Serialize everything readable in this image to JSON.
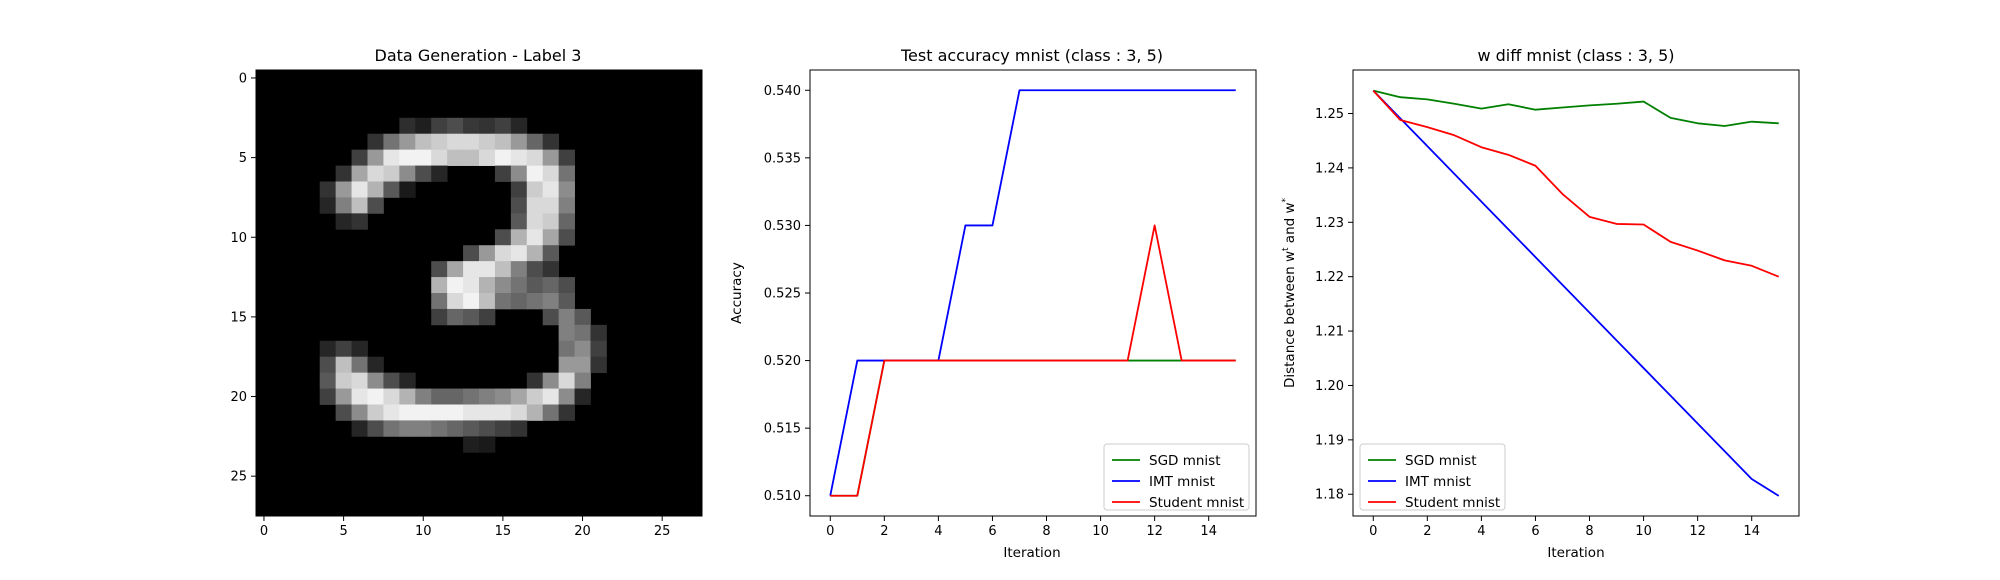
{
  "chart_data": [
    {
      "type": "heatmap",
      "title": "Data Generation - Label 3",
      "xticks": [
        0,
        5,
        10,
        15,
        20,
        25
      ],
      "yticks": [
        0,
        5,
        10,
        15,
        20,
        25
      ],
      "xlim": [
        -0.5,
        27.5
      ],
      "ylim": [
        27.5,
        -0.5
      ],
      "colormap": "gray",
      "size": [
        28,
        28
      ],
      "pixels": [
        {
          "r": 3,
          "c": 9,
          "v": 0.18
        },
        {
          "r": 3,
          "c": 10,
          "v": 0.12
        },
        {
          "r": 3,
          "c": 11,
          "v": 0.25
        },
        {
          "r": 3,
          "c": 12,
          "v": 0.3
        },
        {
          "r": 3,
          "c": 13,
          "v": 0.22
        },
        {
          "r": 3,
          "c": 14,
          "v": 0.2
        },
        {
          "r": 3,
          "c": 15,
          "v": 0.25
        },
        {
          "r": 3,
          "c": 16,
          "v": 0.15
        },
        {
          "r": 4,
          "c": 7,
          "v": 0.2
        },
        {
          "r": 4,
          "c": 8,
          "v": 0.45
        },
        {
          "r": 4,
          "c": 9,
          "v": 0.6
        },
        {
          "r": 4,
          "c": 10,
          "v": 0.75
        },
        {
          "r": 4,
          "c": 11,
          "v": 0.8
        },
        {
          "r": 4,
          "c": 12,
          "v": 0.85
        },
        {
          "r": 4,
          "c": 13,
          "v": 0.85
        },
        {
          "r": 4,
          "c": 14,
          "v": 0.8
        },
        {
          "r": 4,
          "c": 15,
          "v": 0.75
        },
        {
          "r": 4,
          "c": 16,
          "v": 0.6
        },
        {
          "r": 4,
          "c": 17,
          "v": 0.4
        },
        {
          "r": 4,
          "c": 18,
          "v": 0.2
        },
        {
          "r": 5,
          "c": 6,
          "v": 0.25
        },
        {
          "r": 5,
          "c": 7,
          "v": 0.6
        },
        {
          "r": 5,
          "c": 8,
          "v": 0.9
        },
        {
          "r": 5,
          "c": 9,
          "v": 0.95
        },
        {
          "r": 5,
          "c": 10,
          "v": 0.95
        },
        {
          "r": 5,
          "c": 11,
          "v": 0.85
        },
        {
          "r": 5,
          "c": 12,
          "v": 0.75
        },
        {
          "r": 5,
          "c": 13,
          "v": 0.75
        },
        {
          "r": 5,
          "c": 14,
          "v": 0.85
        },
        {
          "r": 5,
          "c": 15,
          "v": 0.95
        },
        {
          "r": 5,
          "c": 16,
          "v": 0.9
        },
        {
          "r": 5,
          "c": 17,
          "v": 0.85
        },
        {
          "r": 5,
          "c": 18,
          "v": 0.6
        },
        {
          "r": 5,
          "c": 19,
          "v": 0.25
        },
        {
          "r": 6,
          "c": 5,
          "v": 0.2
        },
        {
          "r": 6,
          "c": 6,
          "v": 0.65
        },
        {
          "r": 6,
          "c": 7,
          "v": 0.85
        },
        {
          "r": 6,
          "c": 8,
          "v": 0.8
        },
        {
          "r": 6,
          "c": 9,
          "v": 0.55
        },
        {
          "r": 6,
          "c": 10,
          "v": 0.3
        },
        {
          "r": 6,
          "c": 11,
          "v": 0.15
        },
        {
          "r": 6,
          "c": 15,
          "v": 0.25
        },
        {
          "r": 6,
          "c": 16,
          "v": 0.55
        },
        {
          "r": 6,
          "c": 17,
          "v": 0.95
        },
        {
          "r": 6,
          "c": 18,
          "v": 0.85
        },
        {
          "r": 6,
          "c": 19,
          "v": 0.45
        },
        {
          "r": 7,
          "c": 4,
          "v": 0.2
        },
        {
          "r": 7,
          "c": 5,
          "v": 0.6
        },
        {
          "r": 7,
          "c": 6,
          "v": 0.9
        },
        {
          "r": 7,
          "c": 7,
          "v": 0.7
        },
        {
          "r": 7,
          "c": 8,
          "v": 0.35
        },
        {
          "r": 7,
          "c": 9,
          "v": 0.1
        },
        {
          "r": 7,
          "c": 16,
          "v": 0.25
        },
        {
          "r": 7,
          "c": 17,
          "v": 0.8
        },
        {
          "r": 7,
          "c": 18,
          "v": 0.9
        },
        {
          "r": 7,
          "c": 19,
          "v": 0.55
        },
        {
          "r": 8,
          "c": 4,
          "v": 0.15
        },
        {
          "r": 8,
          "c": 5,
          "v": 0.5
        },
        {
          "r": 8,
          "c": 6,
          "v": 0.75
        },
        {
          "r": 8,
          "c": 7,
          "v": 0.3
        },
        {
          "r": 8,
          "c": 16,
          "v": 0.3
        },
        {
          "r": 8,
          "c": 17,
          "v": 0.85
        },
        {
          "r": 8,
          "c": 18,
          "v": 0.85
        },
        {
          "r": 8,
          "c": 19,
          "v": 0.5
        },
        {
          "r": 9,
          "c": 5,
          "v": 0.15
        },
        {
          "r": 9,
          "c": 6,
          "v": 0.2
        },
        {
          "r": 9,
          "c": 16,
          "v": 0.35
        },
        {
          "r": 9,
          "c": 17,
          "v": 0.85
        },
        {
          "r": 9,
          "c": 18,
          "v": 0.8
        },
        {
          "r": 9,
          "c": 19,
          "v": 0.4
        },
        {
          "r": 10,
          "c": 15,
          "v": 0.3
        },
        {
          "r": 10,
          "c": 16,
          "v": 0.7
        },
        {
          "r": 10,
          "c": 17,
          "v": 0.9
        },
        {
          "r": 10,
          "c": 18,
          "v": 0.65
        },
        {
          "r": 10,
          "c": 19,
          "v": 0.3
        },
        {
          "r": 11,
          "c": 13,
          "v": 0.3
        },
        {
          "r": 11,
          "c": 14,
          "v": 0.6
        },
        {
          "r": 11,
          "c": 15,
          "v": 0.85
        },
        {
          "r": 11,
          "c": 16,
          "v": 0.9
        },
        {
          "r": 11,
          "c": 17,
          "v": 0.7
        },
        {
          "r": 11,
          "c": 18,
          "v": 0.35
        },
        {
          "r": 12,
          "c": 11,
          "v": 0.3
        },
        {
          "r": 12,
          "c": 12,
          "v": 0.65
        },
        {
          "r": 12,
          "c": 13,
          "v": 0.9
        },
        {
          "r": 12,
          "c": 14,
          "v": 0.9
        },
        {
          "r": 12,
          "c": 15,
          "v": 0.75
        },
        {
          "r": 12,
          "c": 16,
          "v": 0.5
        },
        {
          "r": 12,
          "c": 17,
          "v": 0.3
        },
        {
          "r": 12,
          "c": 18,
          "v": 0.2
        },
        {
          "r": 13,
          "c": 11,
          "v": 0.7
        },
        {
          "r": 13,
          "c": 12,
          "v": 0.95
        },
        {
          "r": 13,
          "c": 13,
          "v": 0.9
        },
        {
          "r": 13,
          "c": 14,
          "v": 0.7
        },
        {
          "r": 13,
          "c": 15,
          "v": 0.55
        },
        {
          "r": 13,
          "c": 16,
          "v": 0.45
        },
        {
          "r": 13,
          "c": 17,
          "v": 0.35
        },
        {
          "r": 13,
          "c": 18,
          "v": 0.4
        },
        {
          "r": 13,
          "c": 19,
          "v": 0.3
        },
        {
          "r": 14,
          "c": 11,
          "v": 0.45
        },
        {
          "r": 14,
          "c": 12,
          "v": 0.85
        },
        {
          "r": 14,
          "c": 13,
          "v": 0.95
        },
        {
          "r": 14,
          "c": 14,
          "v": 0.75
        },
        {
          "r": 14,
          "c": 15,
          "v": 0.45
        },
        {
          "r": 14,
          "c": 16,
          "v": 0.4
        },
        {
          "r": 14,
          "c": 17,
          "v": 0.45
        },
        {
          "r": 14,
          "c": 18,
          "v": 0.5
        },
        {
          "r": 14,
          "c": 19,
          "v": 0.35
        },
        {
          "r": 15,
          "c": 11,
          "v": 0.25
        },
        {
          "r": 15,
          "c": 12,
          "v": 0.4
        },
        {
          "r": 15,
          "c": 13,
          "v": 0.35
        },
        {
          "r": 15,
          "c": 14,
          "v": 0.25
        },
        {
          "r": 15,
          "c": 18,
          "v": 0.3
        },
        {
          "r": 15,
          "c": 19,
          "v": 0.5
        },
        {
          "r": 15,
          "c": 20,
          "v": 0.35
        },
        {
          "r": 16,
          "c": 19,
          "v": 0.5
        },
        {
          "r": 16,
          "c": 20,
          "v": 0.45
        },
        {
          "r": 16,
          "c": 21,
          "v": 0.2
        },
        {
          "r": 17,
          "c": 4,
          "v": 0.15
        },
        {
          "r": 17,
          "c": 5,
          "v": 0.25
        },
        {
          "r": 17,
          "c": 6,
          "v": 0.15
        },
        {
          "r": 17,
          "c": 19,
          "v": 0.45
        },
        {
          "r": 17,
          "c": 20,
          "v": 0.55
        },
        {
          "r": 17,
          "c": 21,
          "v": 0.25
        },
        {
          "r": 18,
          "c": 4,
          "v": 0.3
        },
        {
          "r": 18,
          "c": 5,
          "v": 0.75
        },
        {
          "r": 18,
          "c": 6,
          "v": 0.45
        },
        {
          "r": 18,
          "c": 7,
          "v": 0.15
        },
        {
          "r": 18,
          "c": 19,
          "v": 0.6
        },
        {
          "r": 18,
          "c": 20,
          "v": 0.6
        },
        {
          "r": 18,
          "c": 21,
          "v": 0.2
        },
        {
          "r": 19,
          "c": 4,
          "v": 0.35
        },
        {
          "r": 19,
          "c": 5,
          "v": 0.8
        },
        {
          "r": 19,
          "c": 6,
          "v": 0.85
        },
        {
          "r": 19,
          "c": 7,
          "v": 0.55
        },
        {
          "r": 19,
          "c": 8,
          "v": 0.3
        },
        {
          "r": 19,
          "c": 9,
          "v": 0.15
        },
        {
          "r": 19,
          "c": 17,
          "v": 0.2
        },
        {
          "r": 19,
          "c": 18,
          "v": 0.55
        },
        {
          "r": 19,
          "c": 19,
          "v": 0.85
        },
        {
          "r": 19,
          "c": 20,
          "v": 0.5
        },
        {
          "r": 20,
          "c": 4,
          "v": 0.25
        },
        {
          "r": 20,
          "c": 5,
          "v": 0.6
        },
        {
          "r": 20,
          "c": 6,
          "v": 0.9
        },
        {
          "r": 20,
          "c": 7,
          "v": 0.95
        },
        {
          "r": 20,
          "c": 8,
          "v": 0.85
        },
        {
          "r": 20,
          "c": 9,
          "v": 0.7
        },
        {
          "r": 20,
          "c": 10,
          "v": 0.5
        },
        {
          "r": 20,
          "c": 11,
          "v": 0.4
        },
        {
          "r": 20,
          "c": 12,
          "v": 0.4
        },
        {
          "r": 20,
          "c": 13,
          "v": 0.45
        },
        {
          "r": 20,
          "c": 14,
          "v": 0.5
        },
        {
          "r": 20,
          "c": 15,
          "v": 0.55
        },
        {
          "r": 20,
          "c": 16,
          "v": 0.65
        },
        {
          "r": 20,
          "c": 17,
          "v": 0.8
        },
        {
          "r": 20,
          "c": 18,
          "v": 0.9
        },
        {
          "r": 20,
          "c": 19,
          "v": 0.55
        },
        {
          "r": 20,
          "c": 20,
          "v": 0.15
        },
        {
          "r": 21,
          "c": 5,
          "v": 0.3
        },
        {
          "r": 21,
          "c": 6,
          "v": 0.55
        },
        {
          "r": 21,
          "c": 7,
          "v": 0.8
        },
        {
          "r": 21,
          "c": 8,
          "v": 0.9
        },
        {
          "r": 21,
          "c": 9,
          "v": 0.95
        },
        {
          "r": 21,
          "c": 10,
          "v": 0.95
        },
        {
          "r": 21,
          "c": 11,
          "v": 0.95
        },
        {
          "r": 21,
          "c": 12,
          "v": 0.95
        },
        {
          "r": 21,
          "c": 13,
          "v": 0.9
        },
        {
          "r": 21,
          "c": 14,
          "v": 0.9
        },
        {
          "r": 21,
          "c": 15,
          "v": 0.9
        },
        {
          "r": 21,
          "c": 16,
          "v": 0.85
        },
        {
          "r": 21,
          "c": 17,
          "v": 0.7
        },
        {
          "r": 21,
          "c": 18,
          "v": 0.45
        },
        {
          "r": 21,
          "c": 19,
          "v": 0.2
        },
        {
          "r": 22,
          "c": 6,
          "v": 0.15
        },
        {
          "r": 22,
          "c": 7,
          "v": 0.3
        },
        {
          "r": 22,
          "c": 8,
          "v": 0.45
        },
        {
          "r": 22,
          "c": 9,
          "v": 0.5
        },
        {
          "r": 22,
          "c": 10,
          "v": 0.5
        },
        {
          "r": 22,
          "c": 11,
          "v": 0.45
        },
        {
          "r": 22,
          "c": 12,
          "v": 0.4
        },
        {
          "r": 22,
          "c": 13,
          "v": 0.35
        },
        {
          "r": 22,
          "c": 14,
          "v": 0.3
        },
        {
          "r": 22,
          "c": 15,
          "v": 0.25
        },
        {
          "r": 22,
          "c": 16,
          "v": 0.2
        },
        {
          "r": 23,
          "c": 13,
          "v": 0.12
        },
        {
          "r": 23,
          "c": 14,
          "v": 0.1
        }
      ]
    },
    {
      "type": "line",
      "title": "Test accuracy mnist (class : 3, 5)",
      "xlabel": "Iteration",
      "ylabel": "Accuracy",
      "xlim": [
        -0.75,
        15.75
      ],
      "ylim": [
        0.5085,
        0.5415
      ],
      "xticks": [
        0,
        2,
        4,
        6,
        8,
        10,
        12,
        14
      ],
      "yticks": [
        "0.510",
        "0.515",
        "0.520",
        "0.525",
        "0.530",
        "0.535",
        "0.540"
      ],
      "x": [
        0,
        1,
        2,
        3,
        4,
        5,
        6,
        7,
        8,
        9,
        10,
        11,
        12,
        13,
        14,
        15
      ],
      "series": [
        {
          "name": "SGD mnist",
          "color": "#008000",
          "values": [
            0.51,
            0.51,
            0.52,
            0.52,
            0.52,
            0.52,
            0.52,
            0.52,
            0.52,
            0.52,
            0.52,
            0.52,
            0.52,
            0.52,
            0.52,
            0.52
          ]
        },
        {
          "name": "IMT mnist",
          "color": "#0000ff",
          "values": [
            0.51,
            0.52,
            0.52,
            0.52,
            0.52,
            0.53,
            0.53,
            0.54,
            0.54,
            0.54,
            0.54,
            0.54,
            0.54,
            0.54,
            0.54,
            0.54
          ]
        },
        {
          "name": "Student mnist",
          "color": "#ff0000",
          "values": [
            0.51,
            0.51,
            0.52,
            0.52,
            0.52,
            0.52,
            0.52,
            0.52,
            0.52,
            0.52,
            0.52,
            0.52,
            0.53,
            0.52,
            0.52,
            0.52
          ]
        }
      ],
      "legend": "lower-right"
    },
    {
      "type": "line",
      "title": "w diff mnist (class : 3, 5)",
      "xlabel": "Iteration",
      "ylabel_parts": [
        "Distance between w",
        "t",
        " and w",
        "*"
      ],
      "xlim": [
        -0.75,
        15.75
      ],
      "ylim": [
        1.176,
        1.258
      ],
      "xticks": [
        0,
        2,
        4,
        6,
        8,
        10,
        12,
        14
      ],
      "yticks": [
        "1.18",
        "1.19",
        "1.20",
        "1.21",
        "1.22",
        "1.23",
        "1.24",
        "1.25"
      ],
      "x": [
        0,
        1,
        2,
        3,
        4,
        5,
        6,
        7,
        8,
        9,
        10,
        11,
        12,
        13,
        14,
        15
      ],
      "series": [
        {
          "name": "SGD mnist",
          "color": "#008000",
          "values": [
            1.2542,
            1.253,
            1.2526,
            1.2518,
            1.2509,
            1.2517,
            1.2507,
            1.2511,
            1.2515,
            1.2518,
            1.2522,
            1.2492,
            1.2482,
            1.2477,
            1.2485,
            1.2482
          ]
        },
        {
          "name": "IMT mnist",
          "color": "#0000ff",
          "values": [
            1.2542,
            1.2491,
            1.244,
            1.2389,
            1.2338,
            1.2287,
            1.2236,
            1.2185,
            1.2134,
            1.2083,
            1.2032,
            1.1981,
            1.193,
            1.1879,
            1.1828,
            1.1797
          ]
        },
        {
          "name": "Student mnist",
          "color": "#ff0000",
          "values": [
            1.2542,
            1.2488,
            1.2475,
            1.246,
            1.2438,
            1.2424,
            1.2404,
            1.2352,
            1.231,
            1.2297,
            1.2296,
            1.2264,
            1.2248,
            1.223,
            1.222,
            1.22
          ]
        }
      ],
      "legend": "lower-left"
    }
  ]
}
